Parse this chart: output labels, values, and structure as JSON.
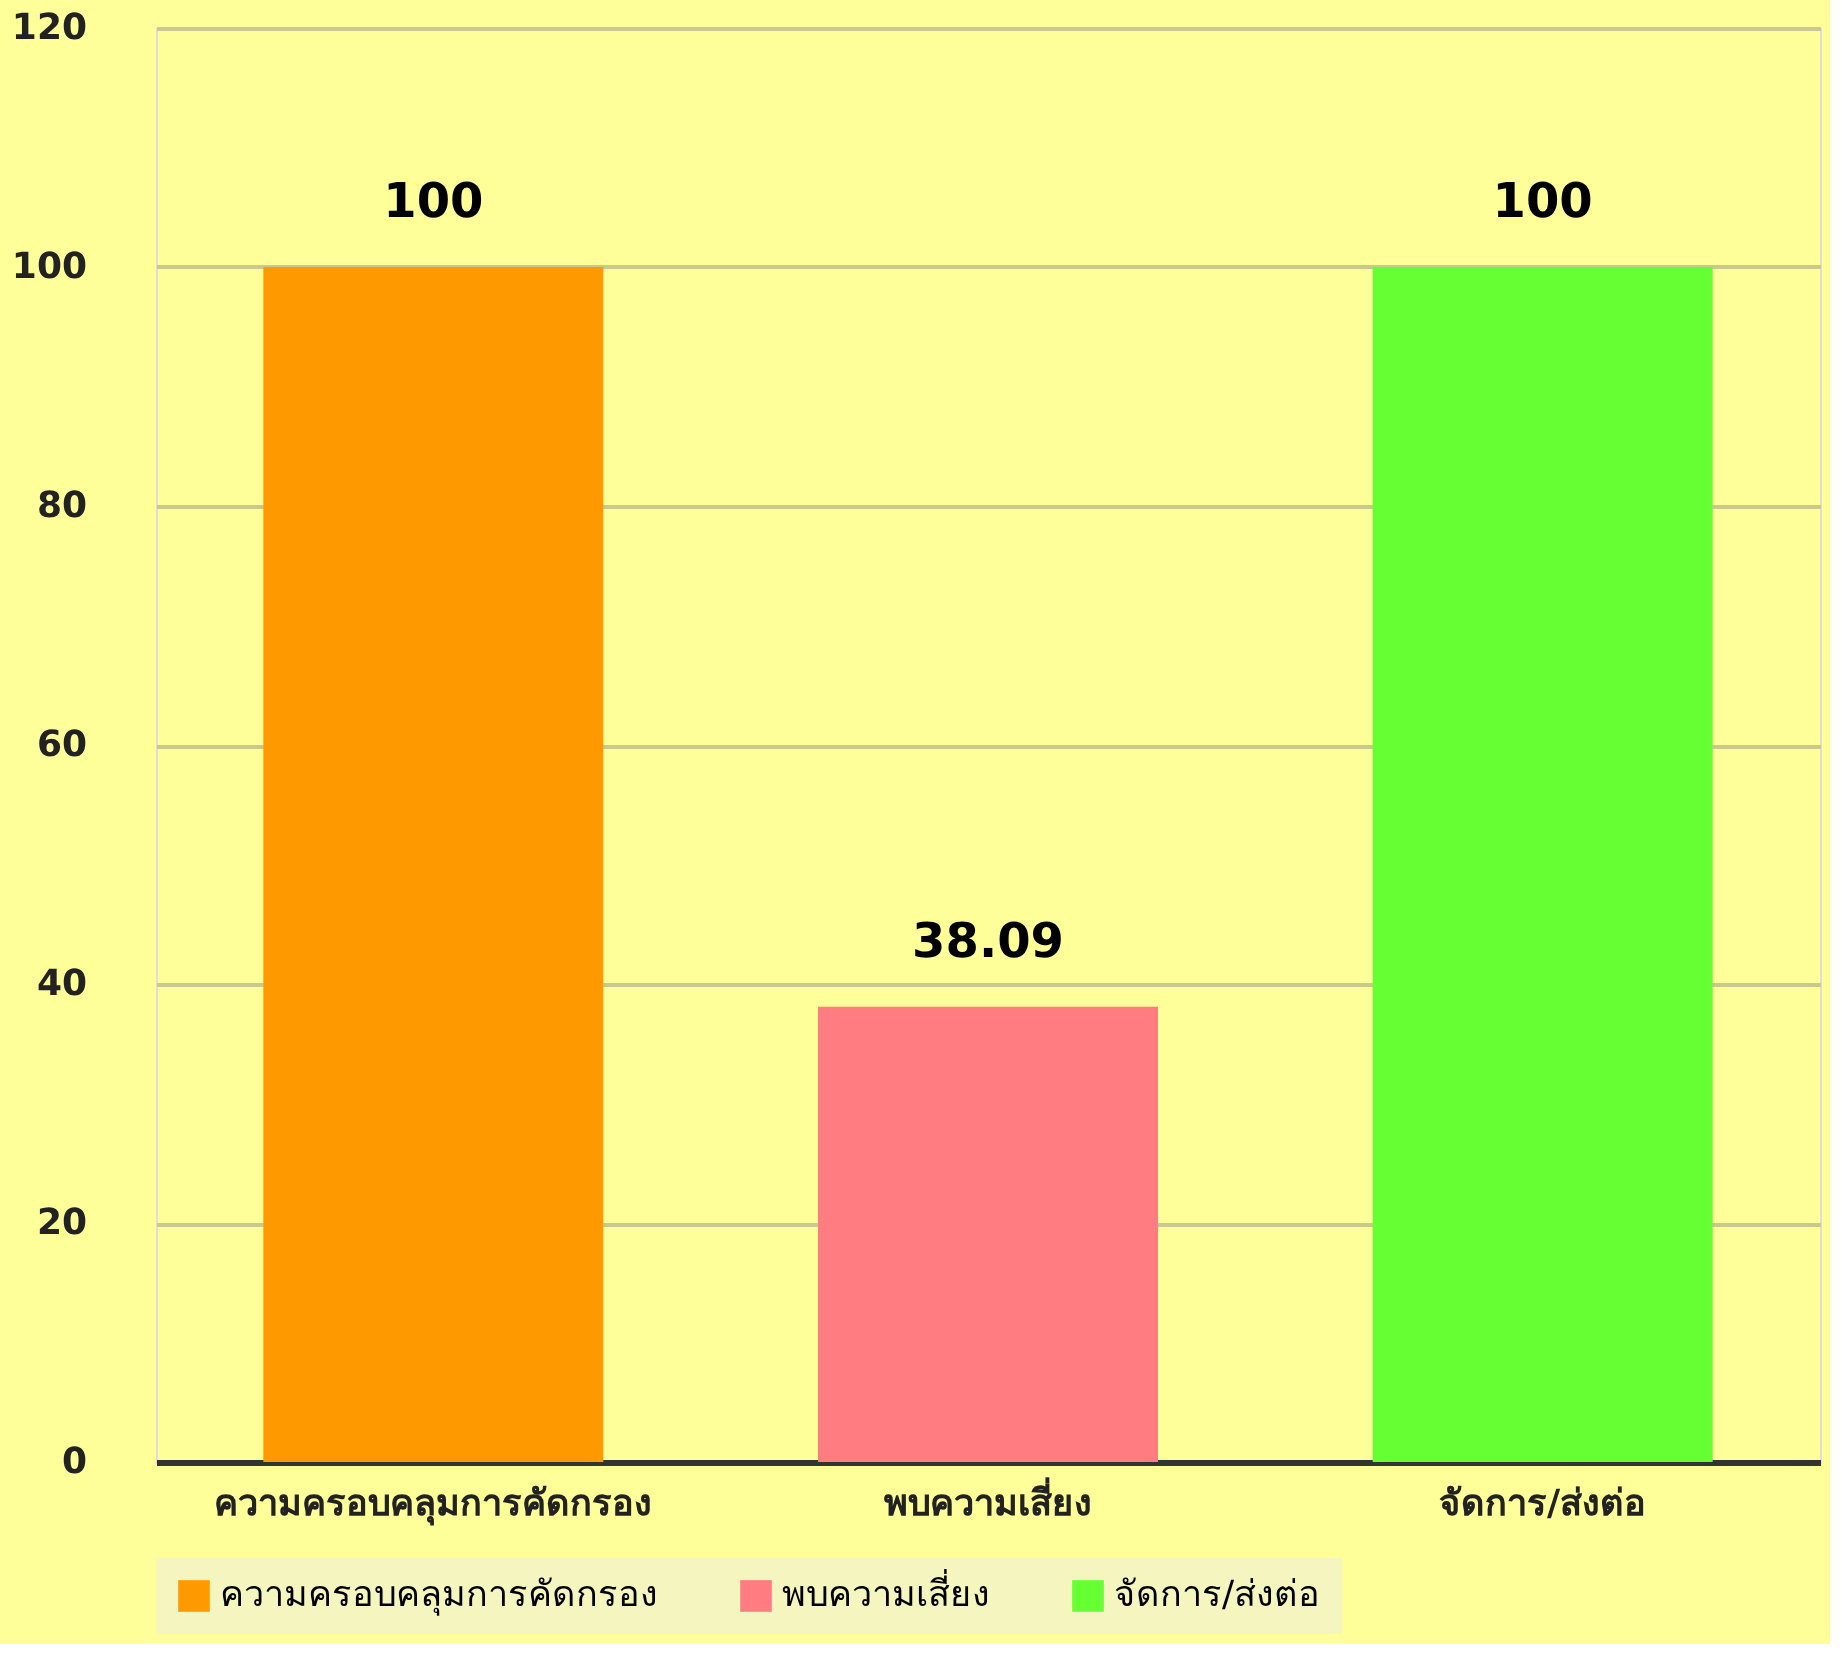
{
  "chart_data": {
    "type": "bar",
    "categories": [
      "ความครอบคลุมการคัดกรอง",
      "พบความเสี่ยง",
      "จัดการ/ส่งต่อ"
    ],
    "series": [
      {
        "name": "ความครอบคลุมการคัดกรอง",
        "color": "#ff9900",
        "values": [
          100,
          null,
          null
        ]
      },
      {
        "name": "พบความเสี่ยง",
        "color": "#ff7c80",
        "values": [
          null,
          38.09,
          null
        ]
      },
      {
        "name": "จัดการ/ส่งต่อ",
        "color": "#66ff33",
        "values": [
          null,
          null,
          100
        ]
      }
    ],
    "ylim": [
      0,
      120
    ],
    "yticks": [
      0,
      20,
      40,
      60,
      80,
      100,
      120
    ],
    "grid": "y",
    "legend": "bottom",
    "data_labels": true
  }
}
